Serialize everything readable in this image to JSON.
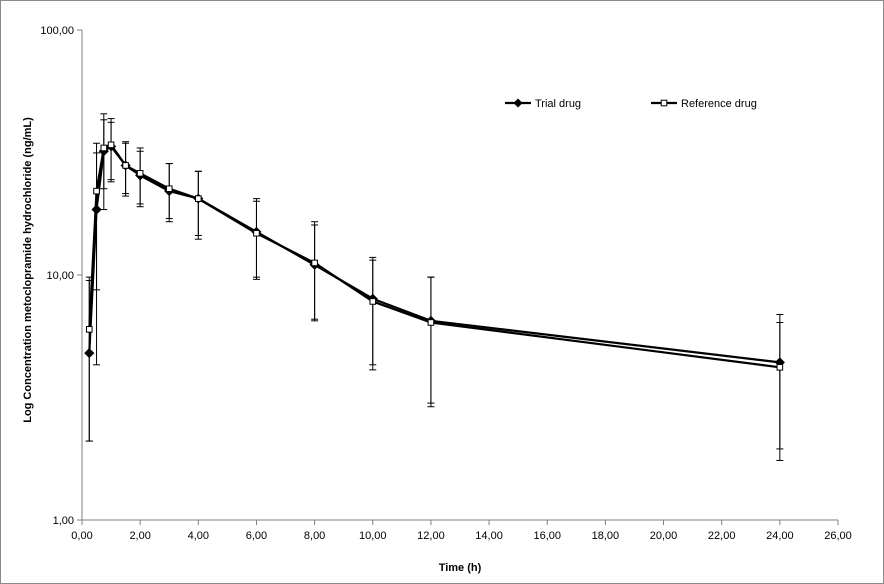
{
  "chart_data": {
    "type": "line",
    "xlabel": "Time (h)",
    "ylabel": "Log Concentration metoclopramide hydrochloride  (ng/mL)",
    "xlim": [
      0,
      26
    ],
    "ylim": [
      1,
      100
    ],
    "yscale": "log",
    "x_ticks": [
      "0,00",
      "2,00",
      "4,00",
      "6,00",
      "8,00",
      "10,00",
      "12,00",
      "14,00",
      "16,00",
      "18,00",
      "20,00",
      "22,00",
      "24,00",
      "26,00"
    ],
    "y_ticks": [
      "1,00",
      "10,00",
      "100,00"
    ],
    "grid": false,
    "legend_position": "top-right",
    "series": [
      {
        "name": "Trial drug",
        "marker": "diamond-filled",
        "color": "#000000",
        "x": [
          0.25,
          0.5,
          0.75,
          1,
          1.5,
          2,
          3,
          4,
          6,
          8,
          10,
          12,
          24
        ],
        "y": [
          4.8,
          18.5,
          32.0,
          33.5,
          28.0,
          25.5,
          22.0,
          20.5,
          15.0,
          11.0,
          8.0,
          6.5,
          4.4
        ],
        "err_low": [
          2.1,
          8.7,
          22.5,
          24.5,
          21.5,
          19.5,
          16.5,
          14.0,
          9.6,
          6.5,
          4.3,
          3.0,
          1.95
        ],
        "err_high": [
          9.5,
          31.5,
          45.5,
          42.0,
          34.5,
          32.0,
          28.5,
          26.5,
          20.0,
          16.0,
          11.5,
          9.8,
          6.9
        ]
      },
      {
        "name": "Reference drug",
        "marker": "square-open",
        "color": "#000000",
        "x": [
          0.25,
          0.5,
          0.75,
          1,
          1.5,
          2,
          3,
          4,
          6,
          8,
          10,
          12,
          24
        ],
        "y": [
          6.0,
          22.0,
          33.0,
          34.0,
          28.0,
          26.0,
          22.5,
          20.5,
          14.8,
          11.2,
          7.8,
          6.4,
          4.2
        ],
        "err_low": [
          2.1,
          4.3,
          18.5,
          24.0,
          21.0,
          19.0,
          17.0,
          14.5,
          9.8,
          6.6,
          4.1,
          2.9,
          1.75
        ],
        "err_high": [
          9.8,
          34.5,
          43.0,
          43.5,
          35.0,
          33.0,
          28.5,
          26.5,
          20.5,
          16.5,
          11.8,
          9.8,
          6.4
        ]
      }
    ]
  }
}
